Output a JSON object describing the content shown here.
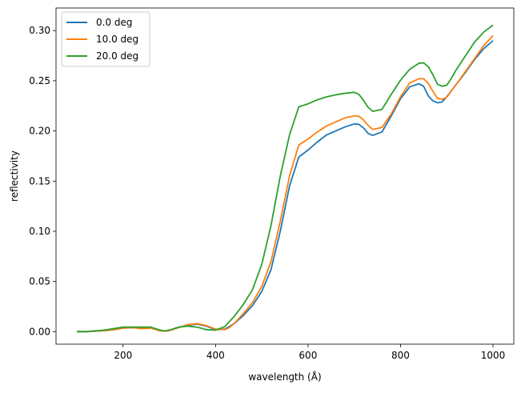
{
  "chart_data": {
    "type": "line",
    "title": "",
    "xlabel": "wavelength (Å)",
    "ylabel": "reflectivity",
    "xlim": [
      55,
      1045
    ],
    "ylim": [
      -0.0125,
      0.3225
    ],
    "xticks": [
      200,
      400,
      600,
      800,
      1000
    ],
    "yticks": [
      0.0,
      0.05,
      0.1,
      0.15,
      0.2,
      0.25,
      0.3
    ],
    "ytick_labels": [
      "0.00",
      "0.05",
      "0.10",
      "0.15",
      "0.20",
      "0.25",
      "0.30"
    ],
    "grid": false,
    "legend_position": "top-left",
    "series": [
      {
        "name": "0.0 deg",
        "color": "#1f77b4",
        "x": [
          100,
          120,
          140,
          160,
          180,
          200,
          220,
          240,
          260,
          280,
          290,
          300,
          320,
          340,
          360,
          380,
          400,
          420,
          430,
          440,
          460,
          480,
          500,
          520,
          540,
          560,
          580,
          600,
          620,
          640,
          660,
          680,
          700,
          710,
          720,
          730,
          740,
          760,
          780,
          800,
          820,
          840,
          850,
          860,
          870,
          880,
          890,
          900,
          910,
          920,
          940,
          960,
          980,
          1000
        ],
        "y": [
          0.0,
          0.0,
          0.0005,
          0.001,
          0.002,
          0.0035,
          0.004,
          0.0035,
          0.004,
          0.001,
          0.0005,
          0.001,
          0.004,
          0.0065,
          0.0075,
          0.0055,
          0.002,
          0.0025,
          0.005,
          0.008,
          0.016,
          0.026,
          0.04,
          0.062,
          0.1,
          0.145,
          0.174,
          0.181,
          0.189,
          0.196,
          0.2,
          0.204,
          0.207,
          0.2065,
          0.203,
          0.1975,
          0.1955,
          0.199,
          0.215,
          0.232,
          0.244,
          0.247,
          0.2445,
          0.235,
          0.23,
          0.228,
          0.229,
          0.234,
          0.24,
          0.246,
          0.258,
          0.271,
          0.282,
          0.29
        ]
      },
      {
        "name": "10.0 deg",
        "color": "#ff7f0e",
        "x": [
          100,
          120,
          140,
          160,
          180,
          200,
          220,
          240,
          260,
          280,
          290,
          300,
          320,
          340,
          360,
          380,
          400,
          420,
          430,
          440,
          460,
          480,
          500,
          520,
          540,
          560,
          580,
          600,
          620,
          640,
          660,
          680,
          700,
          710,
          720,
          730,
          740,
          760,
          780,
          800,
          820,
          840,
          850,
          860,
          870,
          880,
          890,
          900,
          910,
          920,
          940,
          960,
          980,
          1000
        ],
        "y": [
          0.0,
          0.0,
          0.0005,
          0.001,
          0.002,
          0.0035,
          0.004,
          0.003,
          0.0035,
          0.0008,
          0.0005,
          0.001,
          0.004,
          0.007,
          0.008,
          0.006,
          0.0025,
          0.002,
          0.004,
          0.008,
          0.018,
          0.029,
          0.045,
          0.07,
          0.11,
          0.155,
          0.186,
          0.192,
          0.199,
          0.205,
          0.209,
          0.213,
          0.215,
          0.2145,
          0.211,
          0.2055,
          0.2015,
          0.2035,
          0.217,
          0.234,
          0.248,
          0.252,
          0.252,
          0.2475,
          0.2395,
          0.2325,
          0.2315,
          0.2335,
          0.24,
          0.246,
          0.259,
          0.272,
          0.285,
          0.295
        ]
      },
      {
        "name": "20.0 deg",
        "color": "#2ca02c",
        "x": [
          100,
          120,
          140,
          160,
          180,
          200,
          220,
          240,
          260,
          280,
          290,
          300,
          320,
          340,
          360,
          380,
          400,
          420,
          430,
          440,
          460,
          480,
          500,
          520,
          540,
          560,
          580,
          600,
          620,
          640,
          660,
          680,
          700,
          710,
          720,
          730,
          740,
          760,
          780,
          800,
          820,
          840,
          850,
          860,
          870,
          880,
          890,
          900,
          910,
          920,
          940,
          960,
          980,
          1000
        ],
        "y": [
          0.0,
          0.0,
          0.0008,
          0.0015,
          0.003,
          0.0045,
          0.0045,
          0.0045,
          0.0045,
          0.0015,
          0.0008,
          0.0015,
          0.0045,
          0.0055,
          0.0045,
          0.002,
          0.0015,
          0.005,
          0.01,
          0.015,
          0.027,
          0.042,
          0.067,
          0.106,
          0.155,
          0.196,
          0.224,
          0.227,
          0.231,
          0.234,
          0.236,
          0.2375,
          0.2385,
          0.2365,
          0.2305,
          0.2235,
          0.2195,
          0.2215,
          0.2365,
          0.2505,
          0.2615,
          0.2675,
          0.2678,
          0.264,
          0.256,
          0.2465,
          0.2445,
          0.2455,
          0.2525,
          0.2605,
          0.2745,
          0.2885,
          0.2985,
          0.3055
        ]
      }
    ]
  }
}
